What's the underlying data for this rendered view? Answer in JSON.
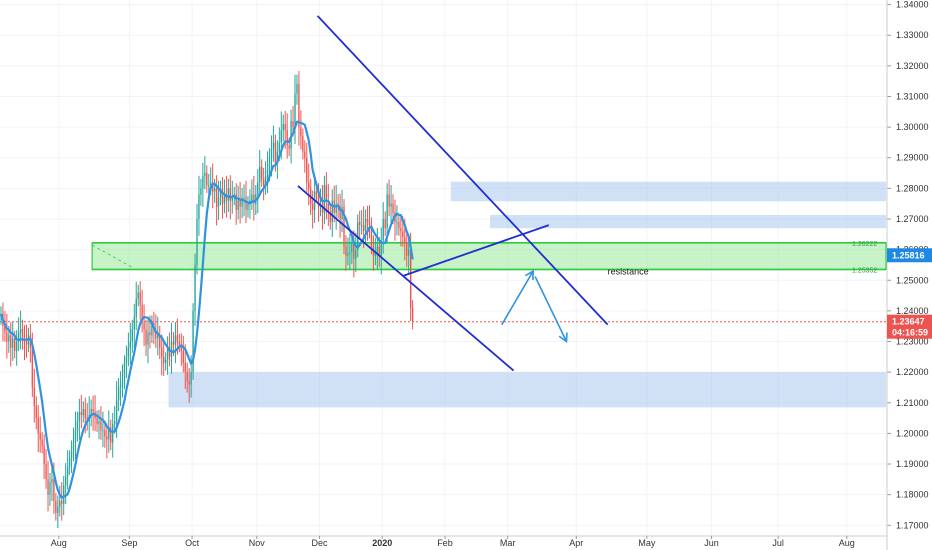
{
  "chart_data": {
    "type": "candlestick",
    "price_axis": {
      "ticks": [
        "1.34000",
        "1.33000",
        "1.32000",
        "1.31000",
        "1.30000",
        "1.29000",
        "1.28000",
        "1.27000",
        "1.26000",
        "1.25000",
        "1.24000",
        "1.23000",
        "1.22000",
        "1.21000",
        "1.20000",
        "1.19000",
        "1.18000",
        "1.17000"
      ],
      "ylim": [
        1.1665,
        1.3415
      ]
    },
    "time_axis": {
      "labels": [
        "Aug",
        "Sep",
        "Oct",
        "Nov",
        "Dec",
        "2020",
        "Feb",
        "Mar",
        "Apr",
        "May",
        "Jun",
        "Jul",
        "Aug"
      ],
      "bold": [
        "2020"
      ],
      "tick_index": [
        30,
        66,
        98,
        131,
        163,
        195,
        227,
        259,
        294,
        330,
        363,
        397,
        432
      ],
      "xlim": [
        0,
        452
      ]
    },
    "current_price": {
      "label": "1.25816",
      "value": 1.25816,
      "color": "#1e88e5"
    },
    "last_price": {
      "label": "1.23647",
      "value": 1.23647,
      "color": "#ef5350"
    },
    "countdown": "04:16:59",
    "levels": [
      {
        "label": "1.26222",
        "value": 1.26222
      },
      {
        "label": "1.25352",
        "value": 1.25352
      }
    ],
    "annotations": [
      {
        "text": "resistance",
        "x": 310,
        "price": 1.2528
      }
    ],
    "zones": [
      {
        "x_start": 230,
        "x_end": 452,
        "top": 1.2822,
        "bottom": 1.2758,
        "color": "#aac8ef"
      },
      {
        "x_start": 250,
        "x_end": 452,
        "top": 1.2713,
        "bottom": 1.267,
        "color": "#aac8ef"
      },
      {
        "x_start": 47,
        "x_end": 452,
        "top": 1.2622,
        "bottom": 1.2535,
        "color": "#9be89b",
        "border": "#2ecc40"
      },
      {
        "x_start": 86,
        "x_end": 452,
        "top": 1.22,
        "bottom": 1.2085,
        "color": "#aac8ef"
      }
    ],
    "trendlines": [
      {
        "x1": 162,
        "y1": 1.3363,
        "x2": 310,
        "y2": 1.2355,
        "color": "#1f2fd0"
      },
      {
        "x1": 152,
        "y1": 1.2808,
        "x2": 262,
        "y2": 1.2205,
        "color": "#1f2fd0"
      },
      {
        "x1": 206,
        "y1": 1.2515,
        "x2": 280,
        "y2": 1.268,
        "color": "#1f2fd0"
      }
    ],
    "arrows": [
      {
        "x1": 256,
        "y1": 1.2355,
        "x2": 272,
        "y2": 1.253,
        "color": "#2f93e0"
      },
      {
        "x1": 273,
        "y1": 1.2512,
        "x2": 289,
        "y2": 1.23,
        "color": "#2f93e0"
      }
    ],
    "colors": {
      "up": "#26a69a",
      "down": "#ef5350",
      "ma": "#2f93e0",
      "level": "#2ecc40"
    },
    "close": [
      1.239,
      1.235,
      1.233,
      1.23,
      1.232,
      1.228,
      1.231,
      1.227,
      1.23,
      1.233,
      1.234,
      1.231,
      1.23,
      1.229,
      1.232,
      1.228,
      1.215,
      1.209,
      1.205,
      1.2,
      1.198,
      1.196,
      1.19,
      1.185,
      1.18,
      1.184,
      1.185,
      1.178,
      1.174,
      1.176,
      1.178,
      1.177,
      1.183,
      1.186,
      1.189,
      1.192,
      1.194,
      1.197,
      1.201,
      1.204,
      1.207,
      1.206,
      1.208,
      1.205,
      1.204,
      1.206,
      1.208,
      1.207,
      1.205,
      1.203,
      1.204,
      1.201,
      1.201,
      1.199,
      1.198,
      1.202,
      1.197,
      1.203,
      1.204,
      1.211,
      1.215,
      1.216,
      1.217,
      1.223,
      1.225,
      1.228,
      1.23,
      1.234,
      1.238,
      1.244,
      1.246,
      1.242,
      1.236,
      1.234,
      1.229,
      1.233,
      1.232,
      1.236,
      1.234,
      1.231,
      1.232,
      1.228,
      1.225,
      1.223,
      1.224,
      1.228,
      1.225,
      1.23,
      1.229,
      1.232,
      1.23,
      1.229,
      1.227,
      1.223,
      1.22,
      1.217,
      1.216,
      1.22,
      1.24,
      1.255,
      1.27,
      1.278,
      1.28,
      1.284,
      1.285,
      1.281,
      1.281,
      1.282,
      1.279,
      1.28,
      1.274,
      1.277,
      1.28,
      1.275,
      1.278,
      1.276,
      1.28,
      1.276,
      1.277,
      1.278,
      1.273,
      1.276,
      1.274,
      1.277,
      1.277,
      1.273,
      1.275,
      1.276,
      1.278,
      1.275,
      1.278,
      1.282,
      1.287,
      1.283,
      1.281,
      1.284,
      1.286,
      1.29,
      1.293,
      1.295,
      1.288,
      1.292,
      1.295,
      1.299,
      1.301,
      1.299,
      1.294,
      1.293,
      1.302,
      1.3,
      1.311,
      1.314,
      1.3,
      1.297,
      1.292,
      1.29,
      1.282,
      1.28,
      1.275,
      1.273,
      1.279,
      1.278,
      1.274,
      1.275,
      1.272,
      1.281,
      1.276,
      1.272,
      1.269,
      1.276,
      1.272,
      1.275,
      1.274,
      1.27,
      1.274,
      1.261,
      1.258,
      1.259,
      1.259,
      1.262,
      1.257,
      1.26,
      1.269,
      1.268,
      1.268,
      1.266,
      1.27,
      1.269,
      1.268,
      1.261,
      1.258,
      1.259,
      1.261,
      1.258,
      1.263,
      1.27,
      1.267,
      1.278,
      1.274,
      1.275,
      1.272,
      1.269,
      1.269,
      1.267,
      1.266,
      1.264,
      1.262,
      1.258,
      1.26,
      1.241,
      1.2365
    ]
  }
}
